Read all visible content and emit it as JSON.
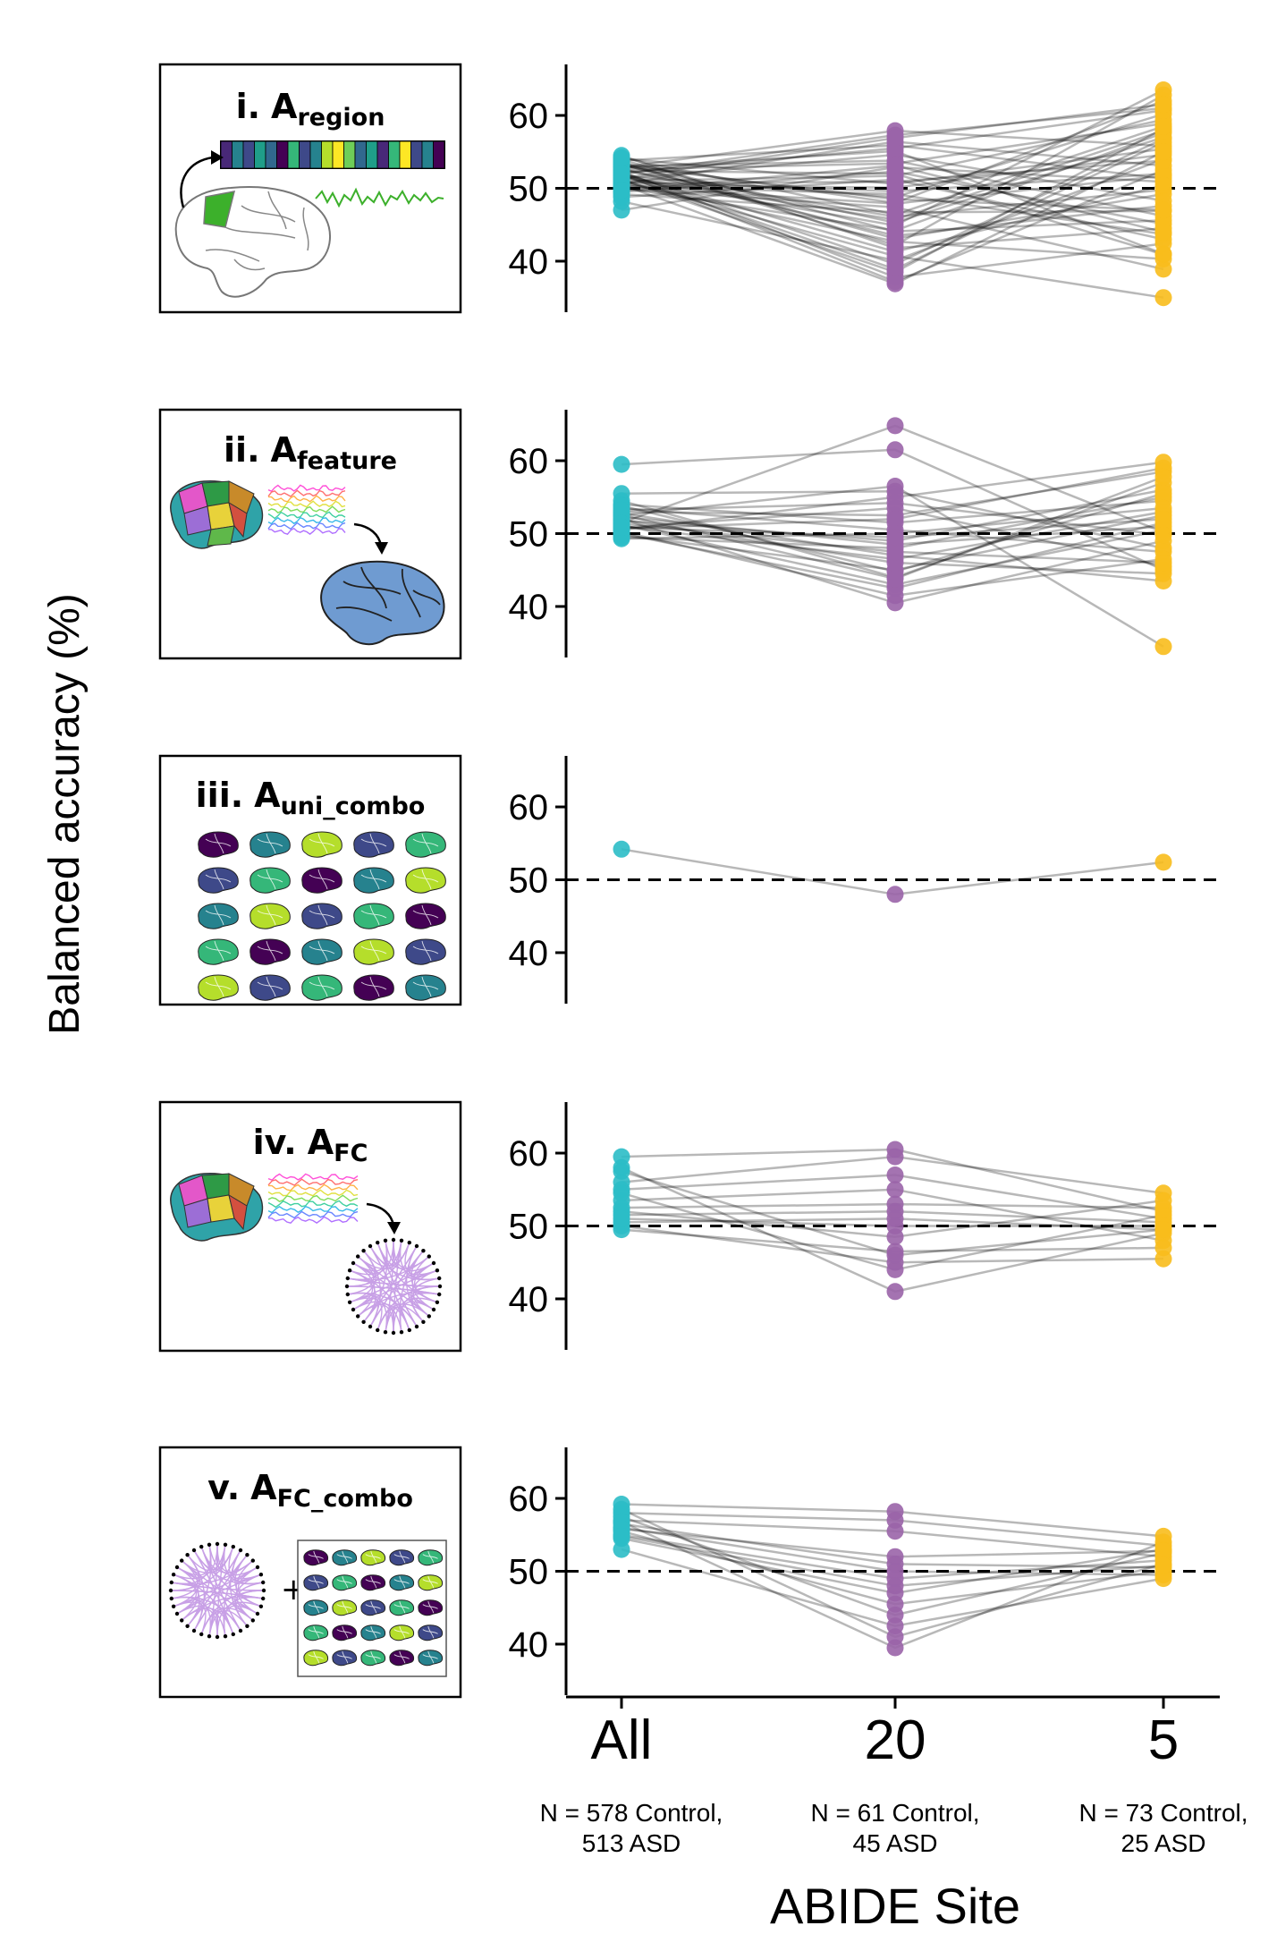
{
  "figure": {
    "ylabel": "Balanced accuracy (%)",
    "xlabel": "ABIDE Site",
    "site_notes": [
      [
        "N = 578 Control,",
        "513 ASD"
      ],
      [
        "N = 61 Control,",
        "45 ASD"
      ],
      [
        "N = 73 Control,",
        "25 ASD"
      ]
    ],
    "colors": {
      "All": "#2bbdc7",
      "20": "#9a64a8",
      "5": "#f8bd1c",
      "line": "#000000",
      "dashed": "#000000"
    }
  },
  "panels": [
    {
      "roman": "i.",
      "A": "A",
      "sub": "region"
    },
    {
      "roman": "ii.",
      "A": "A",
      "sub": "feature"
    },
    {
      "roman": "iii.",
      "A": "A",
      "sub": "uni_combo"
    },
    {
      "roman": "iv.",
      "A": "A",
      "sub": "FC"
    },
    {
      "roman": "v.",
      "A": "A",
      "sub": "FC_combo"
    }
  ],
  "chart_data": [
    {
      "type": "scatter",
      "title": "i. Aregion",
      "categories": [
        "All",
        "20",
        "5"
      ],
      "ylabel": "Balanced accuracy (%)",
      "xlabel": "ABIDE Site",
      "yticks": [
        40,
        50,
        60
      ],
      "ylim": [
        33,
        67
      ],
      "reference_line": 50,
      "series": [
        {
          "values": [
            51.2,
            38.5,
            58.2
          ]
        },
        {
          "values": [
            52.8,
            55.1,
            41.0
          ]
        },
        {
          "values": [
            50.1,
            44.2,
            57.6
          ]
        },
        {
          "values": [
            53.4,
            48.0,
            62.0
          ]
        },
        {
          "values": [
            49.5,
            52.3,
            45.1
          ]
        },
        {
          "values": [
            52.0,
            37.2,
            52.5
          ]
        },
        {
          "values": [
            54.1,
            50.6,
            55.4
          ]
        },
        {
          "values": [
            50.8,
            42.7,
            40.3
          ]
        },
        {
          "values": [
            51.9,
            57.3,
            61.0
          ]
        },
        {
          "values": [
            52.5,
            46.1,
            49.8
          ]
        },
        {
          "values": [
            48.2,
            40.1,
            54.0
          ]
        },
        {
          "values": [
            53.0,
            53.8,
            46.2
          ]
        },
        {
          "values": [
            51.5,
            44.9,
            63.5
          ]
        },
        {
          "values": [
            50.3,
            49.2,
            43.7
          ]
        },
        {
          "values": [
            52.2,
            39.6,
            56.8
          ]
        },
        {
          "values": [
            53.8,
            55.9,
            51.3
          ]
        },
        {
          "values": [
            49.9,
            47.4,
            38.9
          ]
        },
        {
          "values": [
            51.0,
            51.7,
            59.4
          ]
        },
        {
          "values": [
            52.7,
            43.5,
            47.6
          ]
        },
        {
          "values": [
            50.6,
            56.4,
            53.1
          ]
        },
        {
          "values": [
            54.5,
            41.8,
            44.5
          ]
        },
        {
          "values": [
            51.7,
            48.8,
            60.2
          ]
        },
        {
          "values": [
            47.0,
            52.9,
            50.9
          ]
        },
        {
          "values": [
            53.2,
            45.3,
            57.0
          ]
        },
        {
          "values": [
            52.3,
            37.8,
            42.4
          ]
        },
        {
          "values": [
            50.4,
            50.1,
            54.6
          ]
        },
        {
          "values": [
            51.3,
            54.6,
            48.3
          ]
        },
        {
          "values": [
            53.6,
            42.2,
            62.8
          ]
        },
        {
          "values": [
            49.2,
            46.7,
            46.9
          ]
        },
        {
          "values": [
            52.9,
            57.9,
            55.8
          ]
        },
        {
          "values": [
            51.1,
            40.7,
            35.0
          ]
        },
        {
          "values": [
            50.9,
            49.6,
            52.0
          ]
        },
        {
          "values": [
            52.6,
            53.4,
            58.9
          ]
        },
        {
          "values": [
            53.9,
            44.1,
            45.6
          ]
        },
        {
          "values": [
            50.2,
            47.9,
            51.7
          ]
        },
        {
          "values": [
            51.8,
            38.9,
            56.3
          ]
        },
        {
          "values": [
            48.8,
            51.2,
            43.0
          ]
        },
        {
          "values": [
            52.1,
            55.5,
            60.7
          ]
        },
        {
          "values": [
            53.3,
            43.1,
            49.2
          ]
        },
        {
          "values": [
            50.7,
            50.9,
            53.8
          ]
        },
        {
          "values": [
            51.6,
            45.7,
            57.9
          ]
        },
        {
          "values": [
            52.4,
            52.0,
            40.9
          ]
        },
        {
          "values": [
            50.5,
            36.9,
            55.0
          ]
        },
        {
          "values": [
            53.1,
            48.5,
            47.0
          ]
        },
        {
          "values": [
            51.4,
            56.9,
            61.5
          ]
        },
        {
          "values": [
            52.0,
            41.3,
            50.4
          ]
        },
        {
          "values": [
            49.7,
            53.1,
            44.0
          ]
        },
        {
          "values": [
            54.2,
            46.4,
            58.5
          ]
        }
      ]
    },
    {
      "type": "scatter",
      "title": "ii. Afeature",
      "categories": [
        "All",
        "20",
        "5"
      ],
      "yticks": [
        40,
        50,
        60
      ],
      "ylim": [
        33,
        67
      ],
      "reference_line": 50,
      "series": [
        {
          "values": [
            51.5,
            64.8,
            50.2
          ]
        },
        {
          "values": [
            59.5,
            61.5,
            45.0
          ]
        },
        {
          "values": [
            52.5,
            56.5,
            34.5
          ]
        },
        {
          "values": [
            50.5,
            55.0,
            59.8
          ]
        },
        {
          "values": [
            53.0,
            52.5,
            58.5
          ]
        },
        {
          "values": [
            49.5,
            48.0,
            55.0
          ]
        },
        {
          "values": [
            51.0,
            46.5,
            53.0
          ]
        },
        {
          "values": [
            54.5,
            44.0,
            57.0
          ]
        },
        {
          "values": [
            50.0,
            42.5,
            51.5
          ]
        },
        {
          "values": [
            52.0,
            40.5,
            49.0
          ]
        },
        {
          "values": [
            53.5,
            50.5,
            47.5
          ]
        },
        {
          "values": [
            51.8,
            49.0,
            56.0
          ]
        },
        {
          "values": [
            50.8,
            53.5,
            45.5
          ]
        },
        {
          "values": [
            52.8,
            47.0,
            43.5
          ]
        },
        {
          "values": [
            49.8,
            45.0,
            52.5
          ]
        },
        {
          "values": [
            54.0,
            51.5,
            54.5
          ]
        },
        {
          "values": [
            51.2,
            43.0,
            50.5
          ]
        },
        {
          "values": [
            55.5,
            55.8,
            48.0
          ]
        },
        {
          "values": [
            50.3,
            41.5,
            46.5
          ]
        },
        {
          "values": [
            52.3,
            48.5,
            51.0
          ]
        },
        {
          "values": [
            53.8,
            44.8,
            55.5
          ]
        },
        {
          "values": [
            50.7,
            52.0,
            59.0
          ]
        },
        {
          "values": [
            51.9,
            46.0,
            44.5
          ]
        },
        {
          "values": [
            49.3,
            50.0,
            53.5
          ]
        },
        {
          "values": [
            52.6,
            43.8,
            57.8
          ]
        },
        {
          "values": [
            53.2,
            54.2,
            49.8
          ]
        },
        {
          "values": [
            51.4,
            47.5,
            46.0
          ]
        },
        {
          "values": [
            50.9,
            49.5,
            52.0
          ]
        }
      ]
    },
    {
      "type": "scatter",
      "title": "iii. Auni_combo",
      "categories": [
        "All",
        "20",
        "5"
      ],
      "yticks": [
        40,
        50,
        60
      ],
      "ylim": [
        33,
        67
      ],
      "reference_line": 50,
      "series": [
        {
          "values": [
            54.2,
            48.0,
            52.4
          ]
        }
      ]
    },
    {
      "type": "scatter",
      "title": "iv. AFC",
      "categories": [
        "All",
        "20",
        "5"
      ],
      "yticks": [
        40,
        50,
        60
      ],
      "ylim": [
        33,
        67
      ],
      "reference_line": 50,
      "series": [
        {
          "values": [
            59.5,
            60.5,
            52.0
          ]
        },
        {
          "values": [
            58.0,
            41.0,
            49.0
          ]
        },
        {
          "values": [
            56.0,
            59.5,
            54.5
          ]
        },
        {
          "values": [
            55.0,
            57.0,
            51.0
          ]
        },
        {
          "values": [
            53.5,
            55.0,
            48.0
          ]
        },
        {
          "values": [
            52.5,
            53.0,
            52.5
          ]
        },
        {
          "values": [
            51.5,
            52.0,
            50.5
          ]
        },
        {
          "values": [
            50.5,
            51.0,
            49.5
          ]
        },
        {
          "values": [
            49.5,
            46.5,
            47.0
          ]
        },
        {
          "values": [
            50.0,
            45.0,
            45.5
          ]
        },
        {
          "values": [
            54.5,
            44.0,
            51.5
          ]
        },
        {
          "values": [
            52.0,
            48.5,
            53.5
          ]
        },
        {
          "values": [
            51.0,
            50.0,
            50.0
          ]
        },
        {
          "values": [
            57.5,
            46.0,
            49.5
          ]
        }
      ]
    },
    {
      "type": "scatter",
      "title": "v. AFC_combo",
      "categories": [
        "All",
        "20",
        "5"
      ],
      "yticks": [
        40,
        50,
        60
      ],
      "ylim": [
        33,
        67
      ],
      "reference_line": 50,
      "series": [
        {
          "values": [
            59.2,
            58.2,
            54.8
          ]
        },
        {
          "values": [
            58.0,
            57.0,
            53.5
          ]
        },
        {
          "values": [
            57.0,
            55.5,
            52.0
          ]
        },
        {
          "values": [
            56.5,
            51.0,
            50.5
          ]
        },
        {
          "values": [
            56.0,
            50.0,
            49.5
          ]
        },
        {
          "values": [
            55.0,
            49.0,
            51.5
          ]
        },
        {
          "values": [
            54.5,
            47.0,
            53.0
          ]
        },
        {
          "values": [
            55.5,
            45.5,
            50.0
          ]
        },
        {
          "values": [
            57.5,
            44.0,
            52.5
          ]
        },
        {
          "values": [
            53.0,
            42.5,
            49.0
          ]
        },
        {
          "values": [
            58.5,
            41.0,
            51.0
          ]
        },
        {
          "values": [
            56.8,
            39.5,
            54.0
          ]
        },
        {
          "values": [
            55.8,
            52.0,
            52.8
          ]
        },
        {
          "values": [
            54.8,
            48.0,
            50.8
          ]
        }
      ]
    }
  ]
}
